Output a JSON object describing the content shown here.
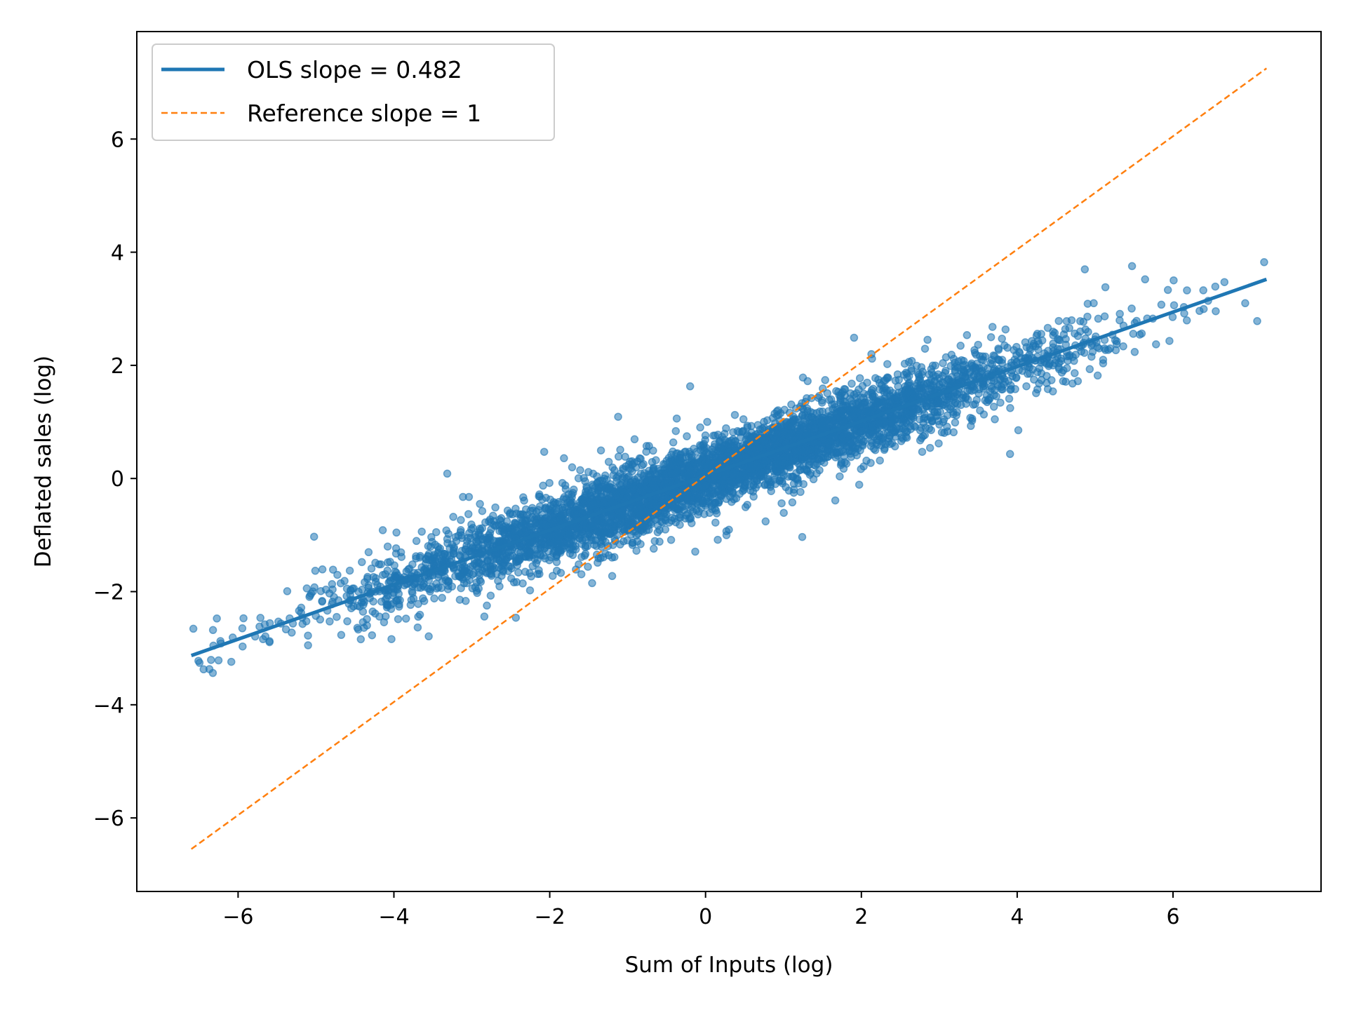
{
  "chart_data": {
    "type": "scatter",
    "title": "",
    "xlabel": "Sum of Inputs (log)",
    "ylabel": "Deflated sales (log)",
    "xlim": [
      -7.3,
      7.9
    ],
    "ylim": [
      -7.3,
      7.9
    ],
    "xticks": [
      -6,
      -4,
      -2,
      0,
      2,
      4,
      6
    ],
    "yticks": [
      -6,
      -4,
      -2,
      0,
      2,
      4,
      6
    ],
    "grid": false,
    "legend_position": "top-left",
    "scatter": {
      "color": "#1f77b4",
      "approx_count": 5000,
      "x_range": [
        -6.6,
        7.2
      ],
      "model": {
        "slope": 0.482,
        "intercept": 0.05,
        "residual_sd": 0.3
      }
    },
    "series": [
      {
        "name": "OLS slope = 0.482",
        "style": "solid",
        "color": "#1f77b4",
        "x": [
          -6.6,
          7.2
        ],
        "y": [
          -3.13,
          3.52
        ]
      },
      {
        "name": "Reference slope = 1",
        "style": "dashed",
        "color": "#ff7f0e",
        "x": [
          -6.6,
          7.2
        ],
        "y": [
          -6.55,
          7.25
        ]
      }
    ]
  }
}
